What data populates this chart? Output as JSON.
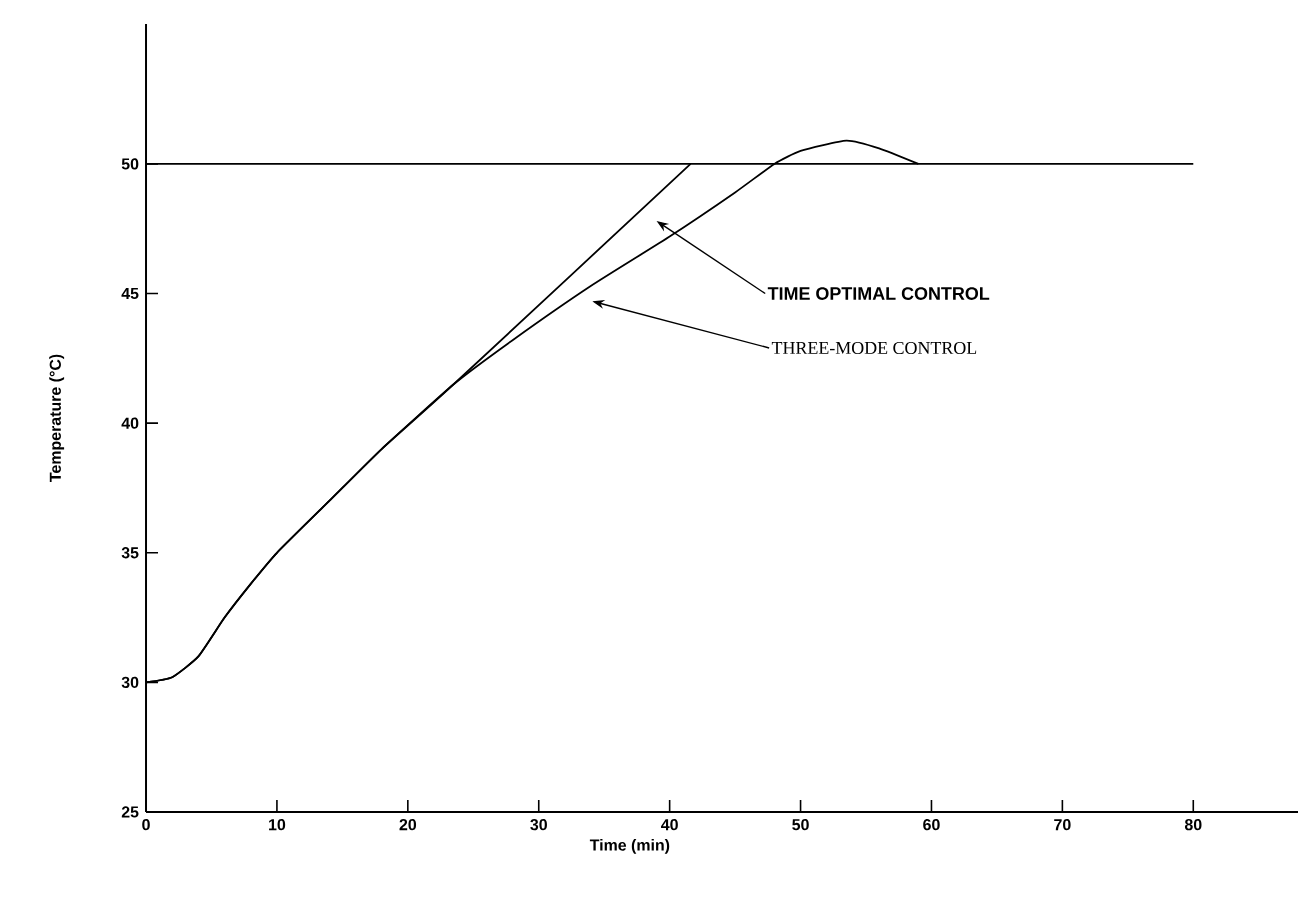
{
  "chart_data": {
    "type": "line",
    "xlabel": "Time (min)",
    "ylabel": "Temperature (°C)",
    "xlim": [
      0,
      88
    ],
    "ylim": [
      25,
      55.4
    ],
    "xticks": [
      0,
      10,
      20,
      30,
      40,
      50,
      60,
      70,
      80
    ],
    "yticks": [
      25,
      30,
      35,
      40,
      45,
      50
    ],
    "grid": false,
    "marker": "none",
    "line_style": "solid",
    "series": [
      {
        "color": "#000000",
        "x": [
          0,
          80
        ],
        "values": [
          50,
          50
        ]
      },
      {
        "color": "#000000",
        "x": [
          0,
          2,
          4,
          6,
          8,
          10,
          14,
          18,
          23.5,
          41.6
        ],
        "values": [
          30,
          30.2,
          31,
          32.5,
          33.8,
          35,
          37,
          39,
          41.5,
          50
        ]
      },
      {
        "color": "#000000",
        "x": [
          0,
          2,
          4,
          6,
          8,
          10,
          14,
          18,
          23.5,
          28,
          34,
          40,
          45,
          48,
          50,
          53.5,
          56,
          59
        ],
        "values": [
          30,
          30.2,
          31,
          32.5,
          33.8,
          35,
          37,
          39,
          41.5,
          43.2,
          45.3,
          47.2,
          48.9,
          50,
          50.5,
          50.9,
          50.6,
          50
        ]
      }
    ],
    "annotations": [
      "TIME OPTIMAL CONTROL",
      "THREE-MODE CONTROL"
    ]
  }
}
